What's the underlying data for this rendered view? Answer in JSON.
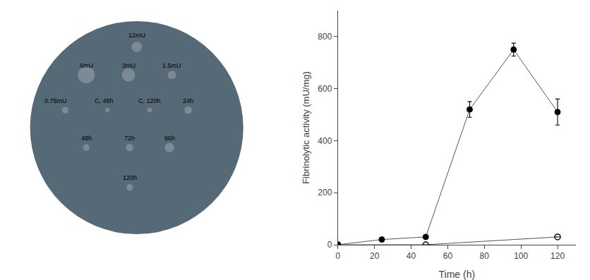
{
  "chart_data": [
    {
      "type": "line",
      "xlabel": "Time (h)",
      "ylabel": "Fibrinolytic activity (mU/mg)",
      "xlim": [
        0,
        130
      ],
      "ylim": [
        0,
        900
      ],
      "xticks": [
        0,
        20,
        40,
        60,
        80,
        100,
        120
      ],
      "yticks": [
        0,
        200,
        400,
        600,
        800
      ],
      "grid": false,
      "series": [
        {
          "x": [
            0,
            48,
            120
          ],
          "values": [
            0,
            0,
            30
          ],
          "yerr": [
            0,
            0,
            0
          ],
          "color": "#555555",
          "marker": "circle-open"
        },
        {
          "x": [
            0,
            24,
            48,
            72,
            96,
            120
          ],
          "values": [
            0,
            20,
            30,
            520,
            750,
            510
          ],
          "yerr": [
            0,
            0,
            0,
            30,
            25,
            50
          ],
          "color": "#555555",
          "marker": "circle"
        }
      ]
    },
    {
      "type": "image",
      "color": "#566977",
      "annotations": [
        "12mU",
        "6mU",
        "3mU",
        "1.5mU",
        "0.75mU",
        "C, 48h",
        "C, 120h",
        "24h",
        "48h",
        "72h",
        "96h",
        "120h"
      ]
    }
  ]
}
